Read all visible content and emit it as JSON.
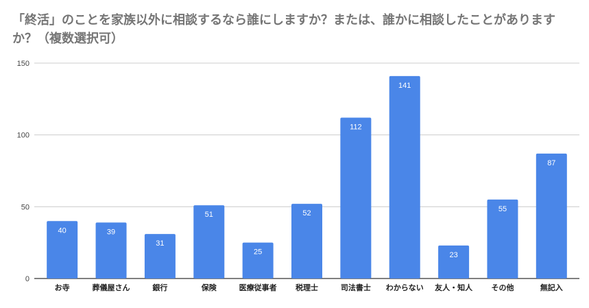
{
  "chart_data": {
    "type": "bar",
    "title": "「終活」のことを家族以外に相談するなら誰にしますか？または、誰かに相談したことがありますか？（複数選択可）",
    "categories": [
      "お寺",
      "葬儀屋さん",
      "銀行",
      "保険",
      "医療従事者",
      "税理士",
      "司法書士",
      "わからない",
      "友人・知人",
      "その他",
      "無記入"
    ],
    "values": [
      40,
      39,
      31,
      51,
      25,
      52,
      112,
      141,
      23,
      55,
      87
    ],
    "data_labels": [
      "40",
      "39",
      "31",
      "51",
      "25",
      "52",
      "112",
      "141",
      "23",
      "55",
      "87"
    ],
    "ylim": [
      0,
      150
    ],
    "yticks": [
      0,
      50,
      100,
      150
    ],
    "ytick_labels": [
      "0",
      "50",
      "100",
      "150"
    ],
    "grid": true,
    "legend": "none",
    "xlabel": "",
    "ylabel": "",
    "colors": {
      "bar": "#4a86e8",
      "grid": "#cccccc",
      "axis": "#333333",
      "title": "#757575",
      "value_label": "#ffffff"
    }
  }
}
